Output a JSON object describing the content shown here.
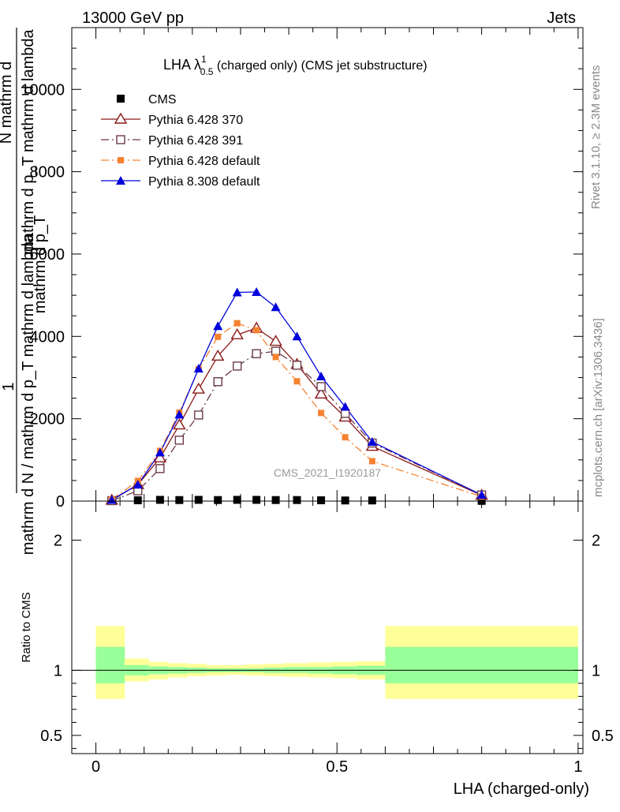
{
  "header": {
    "left": "13000 GeV pp",
    "right": "Jets"
  },
  "title": {
    "main": "LHA λ",
    "sup": "1",
    "sub": "0.5",
    "rest": " (charged only) (CMS jet substructure)"
  },
  "side_texts": {
    "rivet": "Rivet 3.1.10, ≥ 2.3M events",
    "mcplots": "mcplots.cern.ch [arXiv:1306.3436]"
  },
  "ylabel": {
    "numerator": "1",
    "denominator": "mathrm d N / mathrm d p_T mathrm d lambda",
    "garbled_a": "mathrm d",
    "garbled_b": "N",
    "garbled_c": "mathrm d p_T mathrm d lambda",
    "garbled_d": "mathrm d p_T"
  },
  "watermark": "CMS_2021_I1920187",
  "ratio": {
    "ylabel": "Ratio to CMS"
  },
  "xlabel": "LHA (charged-only)",
  "colors": {
    "cms": "#000000",
    "p370": "#8b1a1a",
    "p391": "#6b3a4a",
    "p6def": "#f58231",
    "p8def": "#0000dd",
    "band_outer": "#ffff99",
    "band_inner": "#99ff99"
  },
  "chart_data": [
    {
      "type": "line",
      "xlim": [
        -0.05,
        1.01
      ],
      "ylim": [
        0,
        11500
      ],
      "y_ticks": [
        0,
        2000,
        4000,
        6000,
        8000,
        10000
      ],
      "y_tick_labels": [
        "0",
        "2000",
        "4000",
        "6000",
        "8000",
        "10000"
      ],
      "legend_position": "top-left",
      "series": [
        {
          "name": "CMS",
          "style": "cms",
          "x": [
            0.033,
            0.087,
            0.133,
            0.173,
            0.213,
            0.253,
            0.293,
            0.333,
            0.373,
            0.417,
            0.467,
            0.517,
            0.573,
            0.8
          ],
          "y": [
            5,
            20,
            30,
            25,
            30,
            25,
            30,
            30,
            25,
            25,
            20,
            15,
            15,
            5
          ]
        },
        {
          "name": "Pythia 6.428 370",
          "style": "p370",
          "x": [
            0.033,
            0.087,
            0.133,
            0.173,
            0.213,
            0.253,
            0.293,
            0.333,
            0.373,
            0.417,
            0.467,
            0.517,
            0.573,
            0.8
          ],
          "y": [
            20,
            400,
            1050,
            1850,
            2720,
            3520,
            4040,
            4200,
            3880,
            3320,
            2600,
            2040,
            1330,
            140
          ]
        },
        {
          "name": "Pythia 6.428 391",
          "style": "p391",
          "x": [
            0.033,
            0.087,
            0.133,
            0.173,
            0.213,
            0.253,
            0.293,
            0.333,
            0.373,
            0.417,
            0.467,
            0.517,
            0.573,
            0.8
          ],
          "y": [
            10,
            250,
            790,
            1480,
            2090,
            2900,
            3280,
            3580,
            3640,
            3300,
            2780,
            2130,
            1410,
            150
          ]
        },
        {
          "name": "Pythia 6.428 default",
          "style": "p6def",
          "x": [
            0.033,
            0.087,
            0.133,
            0.173,
            0.213,
            0.253,
            0.293,
            0.333,
            0.373,
            0.417,
            0.467,
            0.517,
            0.573,
            0.8
          ],
          "y": [
            40,
            490,
            1220,
            2150,
            3200,
            3990,
            4320,
            4150,
            3500,
            2910,
            2140,
            1550,
            970,
            110
          ]
        },
        {
          "name": "Pythia 8.308 default",
          "style": "p8def",
          "x": [
            0.033,
            0.087,
            0.133,
            0.173,
            0.213,
            0.253,
            0.293,
            0.333,
            0.373,
            0.417,
            0.467,
            0.517,
            0.573,
            0.8
          ],
          "y": [
            30,
            400,
            1180,
            2100,
            3220,
            4250,
            5070,
            5080,
            4710,
            4000,
            3030,
            2290,
            1440,
            150
          ]
        }
      ]
    },
    {
      "type": "area",
      "xlim": [
        -0.05,
        1.01
      ],
      "ylim": [
        0.36,
        2.3
      ],
      "y_ticks": [
        0.5,
        1,
        2
      ],
      "y_tick_labels": [
        "0.5",
        "1",
        "2"
      ],
      "x_ticks": [
        0,
        0.5,
        1
      ],
      "x_tick_labels": [
        "0",
        "0.5",
        "1"
      ],
      "bins": [
        {
          "lo": 0.0,
          "hi": 0.06,
          "outer": [
            0.78,
            1.34
          ],
          "inner": [
            0.9,
            1.18
          ]
        },
        {
          "lo": 0.06,
          "hi": 0.11,
          "outer": [
            0.915,
            1.09
          ],
          "inner": [
            0.96,
            1.04
          ]
        },
        {
          "lo": 0.11,
          "hi": 0.15,
          "outer": [
            0.93,
            1.065
          ],
          "inner": [
            0.97,
            1.03
          ]
        },
        {
          "lo": 0.15,
          "hi": 0.19,
          "outer": [
            0.945,
            1.055
          ],
          "inner": [
            0.975,
            1.025
          ]
        },
        {
          "lo": 0.19,
          "hi": 0.23,
          "outer": [
            0.955,
            1.05
          ],
          "inner": [
            0.98,
            1.02
          ]
        },
        {
          "lo": 0.23,
          "hi": 0.27,
          "outer": [
            0.96,
            1.04
          ],
          "inner": [
            0.985,
            1.015
          ]
        },
        {
          "lo": 0.27,
          "hi": 0.31,
          "outer": [
            0.965,
            1.04
          ],
          "inner": [
            0.985,
            1.015
          ]
        },
        {
          "lo": 0.31,
          "hi": 0.35,
          "outer": [
            0.96,
            1.045
          ],
          "inner": [
            0.985,
            1.015
          ]
        },
        {
          "lo": 0.35,
          "hi": 0.39,
          "outer": [
            0.955,
            1.05
          ],
          "inner": [
            0.98,
            1.02
          ]
        },
        {
          "lo": 0.39,
          "hi": 0.44,
          "outer": [
            0.95,
            1.055
          ],
          "inner": [
            0.98,
            1.025
          ]
        },
        {
          "lo": 0.44,
          "hi": 0.49,
          "outer": [
            0.945,
            1.06
          ],
          "inner": [
            0.975,
            1.025
          ]
        },
        {
          "lo": 0.49,
          "hi": 0.54,
          "outer": [
            0.94,
            1.065
          ],
          "inner": [
            0.97,
            1.03
          ]
        },
        {
          "lo": 0.54,
          "hi": 0.6,
          "outer": [
            0.93,
            1.07
          ],
          "inner": [
            0.965,
            1.035
          ]
        },
        {
          "lo": 0.6,
          "hi": 1.0,
          "outer": [
            0.78,
            1.34
          ],
          "inner": [
            0.9,
            1.18
          ]
        }
      ]
    }
  ]
}
